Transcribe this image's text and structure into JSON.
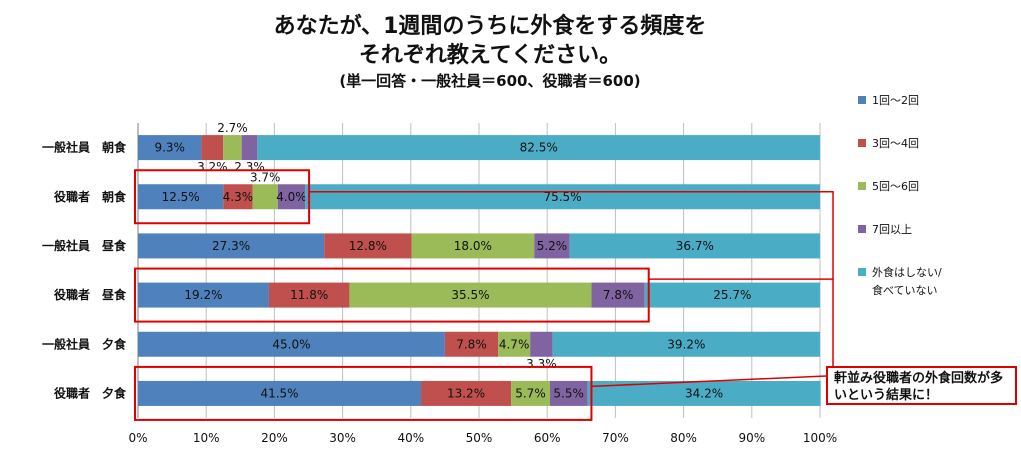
{
  "title_line1": "あなたが、1週間のうちに外食をする頻度を",
  "title_line2": "それぞれ教えてください。",
  "subtitle": "(単一回答・一般社員＝600、役職者＝600)",
  "callout_text": "軒並み役職者の外食回数が多いという結果に！",
  "colors": {
    "highlight_box": "#e00000"
  },
  "chart_data": {
    "type": "bar",
    "orientation": "horizontal",
    "stacked": "percent",
    "categories": [
      "一般社員　朝食",
      "役職者　朝食",
      "一般社員　昼食",
      "役職者　昼食",
      "一般社員　夕食",
      "役職者　夕食"
    ],
    "series": [
      {
        "name": "1回～2回",
        "color": "#4f81bd",
        "values": [
          9.3,
          12.5,
          27.3,
          19.2,
          45.0,
          41.5
        ]
      },
      {
        "name": "3回～4回",
        "color": "#c0504d",
        "values": [
          3.2,
          4.3,
          12.8,
          11.8,
          7.8,
          13.2
        ]
      },
      {
        "name": "5回～6回",
        "color": "#9bbb59",
        "values": [
          2.7,
          3.7,
          18.0,
          35.5,
          4.7,
          5.7
        ]
      },
      {
        "name": "7回以上",
        "color": "#8064a2",
        "values": [
          2.3,
          4.0,
          5.2,
          7.8,
          3.3,
          5.5
        ]
      },
      {
        "name": "外食はしない/\n食べていない",
        "color": "#4bacc6",
        "values": [
          82.5,
          75.5,
          36.7,
          25.7,
          39.2,
          34.2
        ]
      }
    ],
    "xlim": [
      0,
      100
    ],
    "xticks": [
      "0%",
      "10%",
      "20%",
      "30%",
      "40%",
      "50%",
      "60%",
      "70%",
      "80%",
      "90%",
      "100%"
    ],
    "grid": true,
    "legend_position": "right",
    "highlighted_categories": [
      "役職者　朝食",
      "役職者　昼食",
      "役職者　夕食"
    ]
  }
}
